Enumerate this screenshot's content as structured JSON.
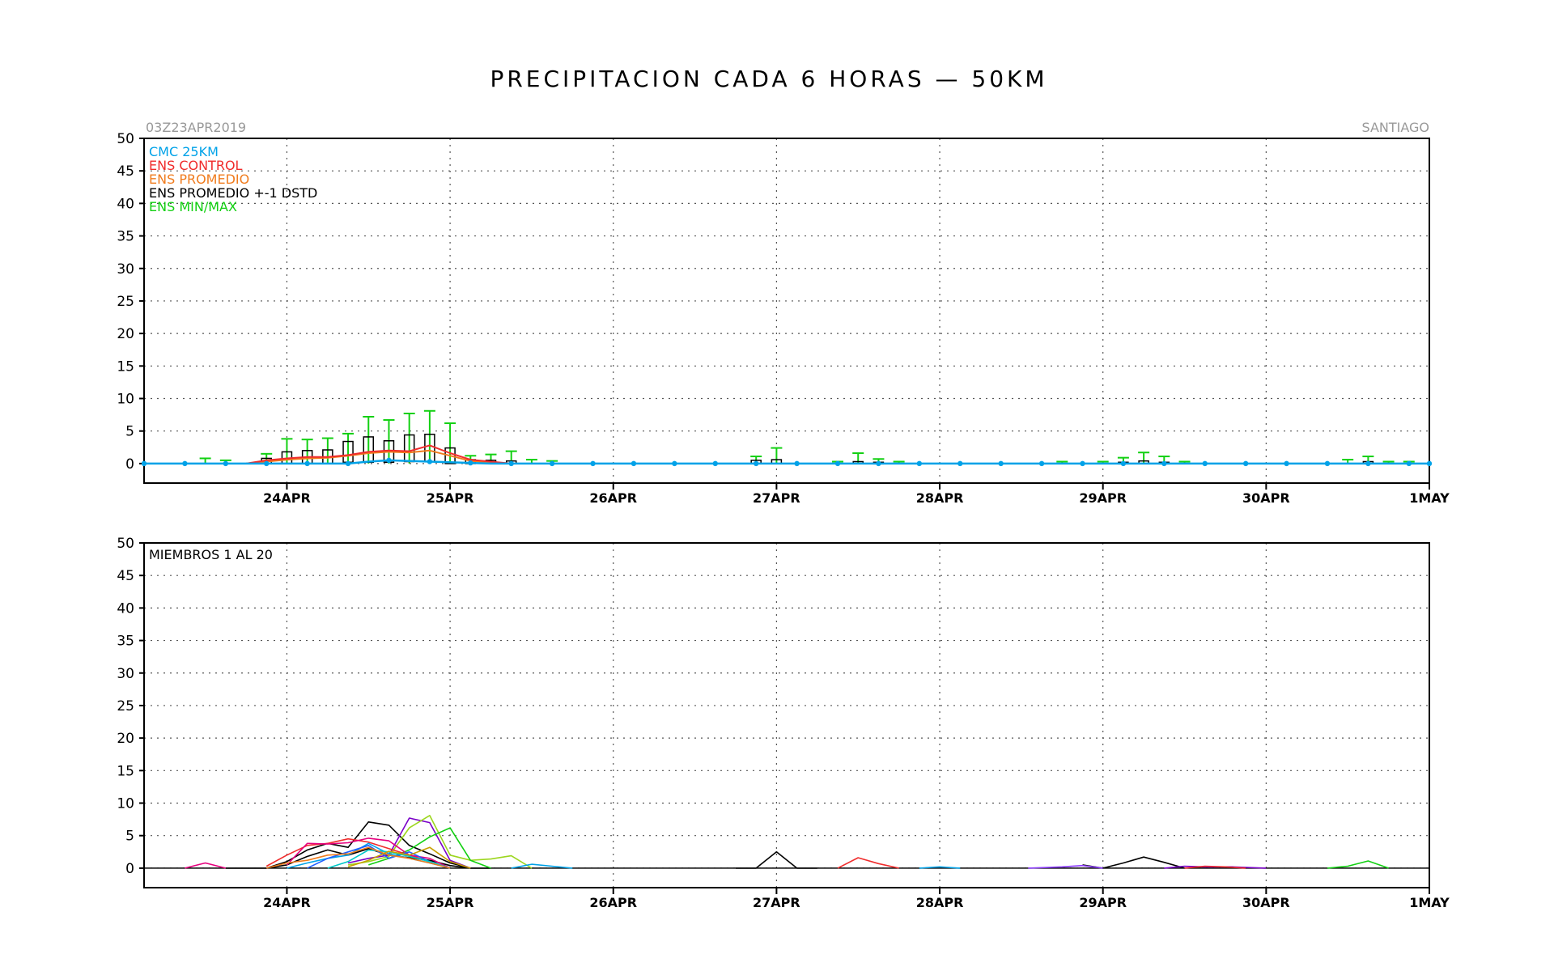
{
  "title": "PRECIPITACION CADA 6 HORAS — 50KM",
  "init_label": "03Z23APR2019",
  "location": "SANTIAGO",
  "colors": {
    "cmc": "#00a2e8",
    "control": "#f02c2c",
    "promedio": "#f07c1e",
    "stdbox": "#000000",
    "minmax": "#12d012",
    "grid": "#555555"
  },
  "chart_data": [
    {
      "type": "box",
      "panel": "ensemble-summary",
      "x_unit": "hours since 03Z23APR2019",
      "xlim": [
        0,
        189
      ],
      "ylim": [
        -3,
        50
      ],
      "yticks": [
        0,
        5,
        10,
        15,
        20,
        25,
        30,
        35,
        40,
        45,
        50
      ],
      "xticks": [
        {
          "x": 21,
          "label": "24APR"
        },
        {
          "x": 45,
          "label": "25APR"
        },
        {
          "x": 69,
          "label": "26APR"
        },
        {
          "x": 93,
          "label": "27APR"
        },
        {
          "x": 117,
          "label": "28APR"
        },
        {
          "x": 141,
          "label": "29APR"
        },
        {
          "x": 165,
          "label": "30APR"
        },
        {
          "x": 189,
          "label": "1MAY"
        }
      ],
      "grid": true,
      "legend": [
        {
          "key": "cmc",
          "label": "CMC 25KM"
        },
        {
          "key": "control",
          "label": "ENS CONTROL"
        },
        {
          "key": "promedio",
          "label": "ENS PROMEDIO"
        },
        {
          "key": "stdbox",
          "label": "ENS PROMEDIO +-1 DSTD"
        },
        {
          "key": "minmax",
          "label": "ENS MIN/MAX"
        }
      ],
      "cmc": {
        "x": [
          0,
          3,
          6,
          9,
          12,
          15,
          18,
          21,
          24,
          27,
          30,
          33,
          36,
          39,
          42,
          45,
          48,
          51,
          54,
          57,
          60,
          63,
          66,
          69,
          72,
          75,
          78,
          81,
          84,
          87,
          90,
          93,
          96,
          99,
          102,
          105,
          108,
          111,
          114,
          117,
          120,
          123,
          126,
          129,
          132,
          135,
          138,
          141,
          144,
          147,
          150,
          153,
          156,
          159,
          162,
          165,
          168,
          171,
          174,
          177,
          180,
          183,
          186,
          189
        ],
        "values": [
          0,
          0,
          0,
          0,
          0,
          0,
          0,
          0,
          0,
          0,
          0,
          0.3,
          0.5,
          0.4,
          0.3,
          0.2,
          0.1,
          0,
          0,
          0,
          0,
          0,
          0,
          0,
          0,
          0,
          0,
          0,
          0,
          0,
          0,
          0,
          0,
          0,
          0,
          0,
          0,
          0,
          0,
          0,
          0,
          0,
          0,
          0,
          0,
          0,
          0,
          0,
          0,
          0,
          0,
          0,
          0,
          0,
          0,
          0,
          0,
          0,
          0,
          0,
          0,
          0,
          0,
          0
        ]
      },
      "control": {
        "x": [
          15,
          18,
          21,
          24,
          27,
          30,
          33,
          36,
          39,
          42,
          45,
          48,
          51,
          54
        ],
        "values": [
          0,
          0.5,
          0.8,
          1.0,
          1.0,
          1.3,
          1.8,
          2.0,
          1.9,
          2.8,
          1.6,
          0.6,
          0.3,
          0
        ]
      },
      "promedio": {
        "x": [
          15,
          18,
          21,
          24,
          27,
          30,
          33,
          36,
          39,
          42,
          45,
          48,
          51,
          54
        ],
        "values": [
          0,
          0.3,
          0.6,
          0.8,
          0.9,
          1.2,
          1.6,
          1.8,
          1.7,
          2.0,
          1.2,
          0.4,
          0.2,
          0
        ]
      },
      "boxes": [
        {
          "x": 18,
          "low": 0,
          "high": 0.8
        },
        {
          "x": 21,
          "low": 0,
          "high": 1.8
        },
        {
          "x": 24,
          "low": 0,
          "high": 2.0
        },
        {
          "x": 27,
          "low": 0,
          "high": 2.1
        },
        {
          "x": 30,
          "low": 0.2,
          "high": 3.4
        },
        {
          "x": 33,
          "low": 0.2,
          "high": 4.1
        },
        {
          "x": 36,
          "low": 0.2,
          "high": 3.5
        },
        {
          "x": 39,
          "low": 0.3,
          "high": 4.4
        },
        {
          "x": 42,
          "low": 0.3,
          "high": 4.5
        },
        {
          "x": 45,
          "low": 0,
          "high": 2.4
        },
        {
          "x": 48,
          "low": 0,
          "high": 0.6
        },
        {
          "x": 51,
          "low": 0,
          "high": 0.5
        },
        {
          "x": 54,
          "low": 0,
          "high": 0.4
        },
        {
          "x": 90,
          "low": 0,
          "high": 0.5
        },
        {
          "x": 93,
          "low": 0,
          "high": 0.6
        },
        {
          "x": 105,
          "low": 0,
          "high": 0.3
        },
        {
          "x": 108,
          "low": 0,
          "high": 0.2
        },
        {
          "x": 144,
          "low": 0,
          "high": 0.2
        },
        {
          "x": 147,
          "low": 0,
          "high": 0.4
        },
        {
          "x": 150,
          "low": 0,
          "high": 0.2
        },
        {
          "x": 180,
          "low": 0,
          "high": 0.3
        }
      ],
      "whiskers": [
        {
          "x": 9,
          "max": 0.8
        },
        {
          "x": 12,
          "max": 0.5
        },
        {
          "x": 18,
          "max": 1.5
        },
        {
          "x": 21,
          "max": 3.8
        },
        {
          "x": 24,
          "max": 3.7
        },
        {
          "x": 27,
          "max": 3.9
        },
        {
          "x": 30,
          "max": 4.6
        },
        {
          "x": 33,
          "max": 7.2
        },
        {
          "x": 36,
          "max": 6.7
        },
        {
          "x": 39,
          "max": 7.7
        },
        {
          "x": 42,
          "max": 8.1
        },
        {
          "x": 45,
          "max": 6.2
        },
        {
          "x": 48,
          "max": 1.2
        },
        {
          "x": 51,
          "max": 1.4
        },
        {
          "x": 54,
          "max": 1.9
        },
        {
          "x": 57,
          "max": 0.6
        },
        {
          "x": 60,
          "max": 0.4
        },
        {
          "x": 90,
          "max": 1.1
        },
        {
          "x": 93,
          "max": 2.4
        },
        {
          "x": 102,
          "max": 0.3
        },
        {
          "x": 105,
          "max": 1.6
        },
        {
          "x": 108,
          "max": 0.7
        },
        {
          "x": 111,
          "max": 0.3
        },
        {
          "x": 135,
          "max": 0.3
        },
        {
          "x": 141,
          "max": 0.3
        },
        {
          "x": 144,
          "max": 0.9
        },
        {
          "x": 147,
          "max": 1.7
        },
        {
          "x": 150,
          "max": 1.1
        },
        {
          "x": 153,
          "max": 0.3
        },
        {
          "x": 177,
          "max": 0.6
        },
        {
          "x": 180,
          "max": 1.1
        },
        {
          "x": 183,
          "max": 0.3
        },
        {
          "x": 186,
          "max": 0.3
        }
      ]
    },
    {
      "type": "line",
      "panel": "members",
      "label": "MIEMBROS 1 AL 20",
      "x_unit": "hours since 03Z23APR2019",
      "xlim": [
        0,
        189
      ],
      "ylim": [
        -3,
        50
      ],
      "yticks": [
        0,
        5,
        10,
        15,
        20,
        25,
        30,
        35,
        40,
        45,
        50
      ],
      "xticks": [
        {
          "x": 21,
          "label": "24APR"
        },
        {
          "x": 45,
          "label": "25APR"
        },
        {
          "x": 69,
          "label": "26APR"
        },
        {
          "x": 93,
          "label": "27APR"
        },
        {
          "x": 117,
          "label": "28APR"
        },
        {
          "x": 141,
          "label": "29APR"
        },
        {
          "x": 165,
          "label": "30APR"
        },
        {
          "x": 189,
          "label": "1MAY"
        }
      ],
      "grid": true,
      "series": [
        {
          "color": "#000000",
          "x": [
            12,
            15,
            18,
            21,
            24,
            27,
            30,
            33,
            36,
            39,
            42,
            45,
            48,
            51
          ],
          "values": [
            0,
            0,
            0,
            1.0,
            2.8,
            3.8,
            3.2,
            7.1,
            6.6,
            3.5,
            2.2,
            0.8,
            0,
            0
          ]
        },
        {
          "color": "#000000",
          "x": [
            87,
            90,
            93,
            96,
            99
          ],
          "values": [
            0,
            0,
            2.5,
            0,
            0
          ]
        },
        {
          "color": "#000000",
          "x": [
            138,
            141,
            144,
            147,
            150,
            153
          ],
          "values": [
            0.5,
            0,
            0.8,
            1.7,
            0.9,
            0
          ]
        },
        {
          "color": "#000000",
          "x": [
            18,
            21,
            24,
            27,
            30,
            33,
            36,
            39,
            42,
            45,
            48
          ],
          "values": [
            0,
            0.5,
            1.8,
            2.8,
            2.0,
            3.0,
            2.0,
            1.6,
            1.2,
            0.4,
            0
          ]
        },
        {
          "color": "#7a00c8",
          "x": [
            30,
            33,
            36,
            39,
            42,
            45,
            48
          ],
          "values": [
            0.8,
            1.5,
            2.0,
            7.7,
            7.0,
            1.2,
            0
          ]
        },
        {
          "color": "#9cd61e",
          "x": [
            30,
            33,
            36,
            39,
            42,
            45,
            48,
            51,
            54,
            57
          ],
          "values": [
            0.5,
            1.0,
            1.8,
            6.2,
            8.1,
            2.0,
            1.2,
            1.4,
            1.9,
            0
          ]
        },
        {
          "color": "#12d012",
          "x": [
            33,
            36,
            39,
            42,
            45,
            48,
            51
          ],
          "values": [
            0.5,
            1.5,
            2.8,
            4.8,
            6.2,
            1.2,
            0
          ]
        },
        {
          "color": "#12d012",
          "x": [
            174,
            177,
            180,
            183
          ],
          "values": [
            0,
            0.3,
            1.1,
            0
          ]
        },
        {
          "color": "#f02c2c",
          "x": [
            18,
            21,
            24,
            27,
            30,
            33,
            36,
            39,
            42,
            45
          ],
          "values": [
            0.3,
            2.0,
            3.5,
            3.8,
            4.5,
            4.0,
            3.0,
            2.0,
            1.0,
            0
          ]
        },
        {
          "color": "#f02c2c",
          "x": [
            102,
            105,
            108,
            111
          ],
          "values": [
            0,
            1.6,
            0.7,
            0
          ]
        },
        {
          "color": "#e6007e",
          "x": [
            21,
            24,
            27,
            30,
            33,
            36,
            39,
            42,
            45
          ],
          "values": [
            0.5,
            3.8,
            3.7,
            3.9,
            4.6,
            4.2,
            2.0,
            1.5,
            0
          ]
        },
        {
          "color": "#e6007e",
          "x": [
            6,
            9,
            12
          ],
          "values": [
            0,
            0.8,
            0
          ]
        },
        {
          "color": "#00a2e8",
          "x": [
            21,
            24,
            27,
            30,
            33,
            36,
            39,
            42,
            45
          ],
          "values": [
            0,
            0.8,
            1.5,
            2.0,
            3.8,
            2.2,
            1.5,
            0.8,
            0
          ]
        },
        {
          "color": "#00a2e8",
          "x": [
            54,
            57,
            60,
            63
          ],
          "values": [
            0,
            0.6,
            0.3,
            0
          ]
        },
        {
          "color": "#2060ff",
          "x": [
            24,
            27,
            30,
            33,
            36,
            39,
            42,
            45
          ],
          "values": [
            0,
            1.5,
            2.5,
            3.5,
            1.5,
            2.5,
            1.0,
            0
          ]
        },
        {
          "color": "#00c8c8",
          "x": [
            27,
            30,
            33,
            36,
            39,
            42,
            45
          ],
          "values": [
            0,
            1.0,
            2.8,
            2.5,
            1.8,
            1.0,
            0
          ]
        },
        {
          "color": "#f07c1e",
          "x": [
            18,
            21,
            24,
            27,
            30,
            33,
            36,
            39,
            42,
            45
          ],
          "values": [
            0,
            0.8,
            1.2,
            2.0,
            2.2,
            3.2,
            2.0,
            1.5,
            0.8,
            0
          ]
        },
        {
          "color": "#c8a000",
          "x": [
            30,
            33,
            36,
            39,
            42,
            45,
            48
          ],
          "values": [
            0.2,
            1.2,
            2.6,
            2.0,
            3.2,
            1.0,
            0
          ]
        },
        {
          "color": "#8c3cff",
          "x": [
            130,
            135,
            138,
            141
          ],
          "values": [
            0,
            0.2,
            0.4,
            0
          ]
        },
        {
          "color": "#7a00c8",
          "x": [
            150,
            153,
            156,
            160,
            165
          ],
          "values": [
            0,
            0.3,
            0.2,
            0.2,
            0
          ]
        },
        {
          "color": "#f02c2c",
          "x": [
            153,
            156,
            159,
            162
          ],
          "values": [
            0,
            0.3,
            0.2,
            0
          ]
        },
        {
          "color": "#00a2e8",
          "x": [
            114,
            117,
            120
          ],
          "values": [
            0,
            0.2,
            0
          ]
        }
      ]
    }
  ]
}
